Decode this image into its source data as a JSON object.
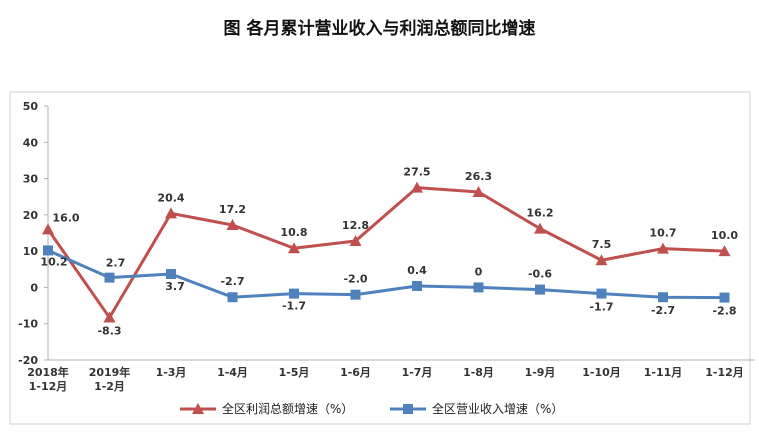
{
  "chart_data": {
    "type": "line",
    "title": "图  各月累计营业收入与利润总额同比增速",
    "categories": [
      "2018年\n1-12月",
      "2019年\n1-2月",
      "1-3月",
      "1-4月",
      "1-5月",
      "1-6月",
      "1-7月",
      "1-8月",
      "1-9月",
      "1-10月",
      "1-11月",
      "1-12月"
    ],
    "series": [
      {
        "name": "全区利润总额增速（%）",
        "color": "#c0504d",
        "marker": "triangle",
        "values": [
          16.0,
          -8.3,
          20.4,
          17.2,
          10.8,
          12.8,
          27.5,
          26.3,
          16.2,
          7.5,
          10.7,
          10.0
        ],
        "labels": [
          "16.0",
          "-8.3",
          "20.4",
          "17.2",
          "10.8",
          "12.8",
          "27.5",
          "26.3",
          "16.2",
          "7.5",
          "10.7",
          "10.0"
        ]
      },
      {
        "name": "全区营业收入增速（%）",
        "color": "#4f81bd",
        "marker": "square",
        "values": [
          10.2,
          2.7,
          3.7,
          -2.7,
          -1.7,
          -2.0,
          0.4,
          0,
          -0.6,
          -1.7,
          -2.7,
          -2.8
        ],
        "labels": [
          "10.2",
          "2.7",
          "3.7",
          "-2.7",
          "-1.7",
          "-2.0",
          "0.4",
          "0",
          "-0.6",
          "-1.7",
          "-2.7",
          "-2.8"
        ]
      }
    ],
    "ylim": [
      -20,
      50
    ],
    "yticks": [
      -20,
      -10,
      0,
      10,
      20,
      30,
      40,
      50
    ],
    "grid": false,
    "legend": "bottom"
  }
}
